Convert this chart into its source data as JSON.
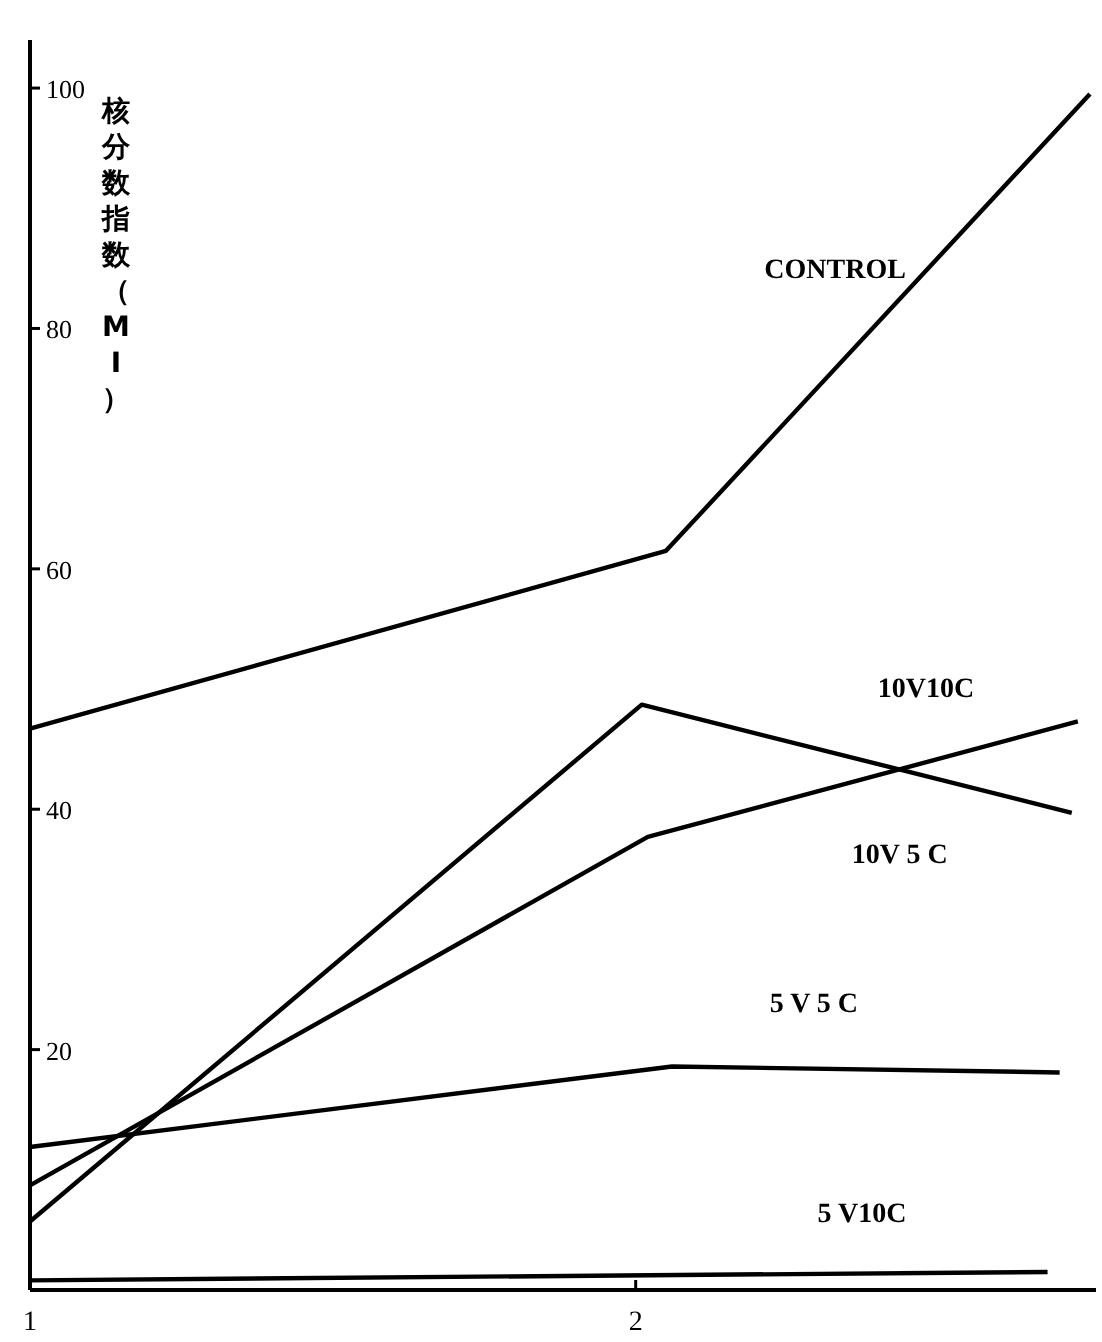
{
  "chart_data": {
    "type": "line",
    "ylabel": "核分数指数（MI）",
    "xlim": [
      1,
      2.76
    ],
    "xticks": [
      1,
      2
    ],
    "ylim": [
      0,
      104
    ],
    "yticks": [
      20,
      40,
      60,
      80,
      100
    ],
    "grid": false,
    "marker": "none",
    "line_style": "solid",
    "series": [
      {
        "name": "CONTROL",
        "color": "#000000",
        "x": [
          1,
          2.05,
          2.75
        ],
        "values": [
          46.7,
          61.5,
          99.5
        ]
      },
      {
        "name": "10V10C",
        "color": "#000000",
        "x": [
          1,
          2.02,
          2.73
        ],
        "values": [
          8.7,
          37.7,
          47.3
        ]
      },
      {
        "name": "10V 5 C",
        "color": "#000000",
        "x": [
          1,
          2.01,
          2.72
        ],
        "values": [
          5.7,
          48.7,
          39.7
        ]
      },
      {
        "name": "5 V 5 C",
        "color": "#000000",
        "x": [
          1,
          2.06,
          2.7
        ],
        "values": [
          11.9,
          18.6,
          18.1
        ]
      },
      {
        "name": "5 V10C",
        "color": "#000000",
        "x": [
          1,
          2.68
        ],
        "values": [
          0.8,
          1.5
        ]
      }
    ]
  }
}
